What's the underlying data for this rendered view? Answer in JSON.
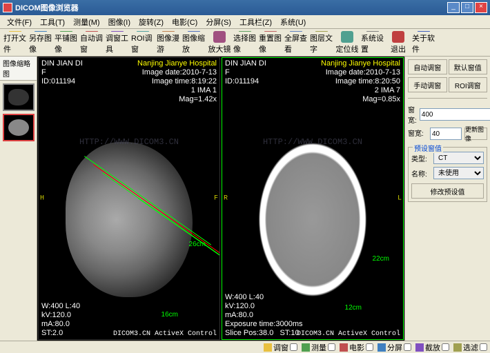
{
  "window": {
    "title": "DICOM图像浏览器"
  },
  "menu": [
    "文件(F)",
    "工具(T)",
    "测量(M)",
    "图像(I)",
    "旋转(Z)",
    "电影(C)",
    "分屏(S)",
    "工具栏(Z)",
    "系统(U)"
  ],
  "toolbar": [
    {
      "label": "打开文件",
      "color": "#e8c040"
    },
    {
      "label": "另存图像",
      "color": "#4080c0"
    },
    {
      "label": "平铺图像",
      "color": "#50a050"
    },
    {
      "label": "自动调窗",
      "color": "#c05050"
    },
    {
      "label": "调窗工具",
      "color": "#8050c0"
    },
    {
      "label": "ROI调窗",
      "color": "#50a0a0"
    },
    {
      "label": "图像漫游",
      "color": "#c08050"
    },
    {
      "label": "图像缩放",
      "color": "#5070c0"
    },
    {
      "label": "放大镜",
      "color": "#a05080"
    },
    {
      "label": "选择图像",
      "color": "#60a060"
    },
    {
      "label": "重置图像",
      "color": "#c06060"
    },
    {
      "label": "全屏查看",
      "color": "#6080c0"
    },
    {
      "label": "图层文字",
      "color": "#a0a050"
    },
    {
      "label": "定位线",
      "color": "#50a090"
    },
    {
      "label": "系统设置",
      "color": "#808080"
    },
    {
      "label": "退出",
      "color": "#c04040"
    },
    {
      "label": "关于软件",
      "color": "#4060c0"
    }
  ],
  "thumbs": {
    "tab": "图像缩略图"
  },
  "view1": {
    "patient": "DIN JIAN DI",
    "sex": "F",
    "id": "ID:011194",
    "hospital": "Nanjing Jianye Hospital",
    "date": "Image date:2010-7-13",
    "time": "Image time:8:19:22",
    "ima": "1 IMA 1",
    "mag": "Mag=1.42x",
    "side_l": "H",
    "side_r": "F",
    "wl": "W:400 L:40",
    "kv": "kV:120.0",
    "ma": "mA:80.0",
    "st": "ST:2.0",
    "ruler_r": "26cm",
    "ruler_b": "16cm",
    "watermark": "HTTP://WWW.DICOM3.CN",
    "control": "DICOM3.CN ActiveX Control"
  },
  "view2": {
    "patient": "DIN JIAN DI",
    "sex": "F",
    "id": "ID:011194",
    "hospital": "Nanjing Jianye Hospital",
    "date": "Image date:2010-7-13",
    "time": "Image time:8:20:50",
    "ima": "2 IMA 7",
    "mag": "Mag=0.85x",
    "side_l": "R",
    "side_r": "L",
    "wl": "W:400 L:40",
    "kv": "kV:120.0",
    "ma": "mA:80.0",
    "exp": "Exposure time:3000ms",
    "slice": "Slice Pos:38.0   ST:10",
    "ruler_r": "22cm",
    "ruler_b": "12cm",
    "watermark": "HTTP://WWW.DICOM3.CN",
    "control": "DICOM3.CN ActiveX Control"
  },
  "panel": {
    "auto": "自动调窗",
    "default": "默认窗值",
    "manual": "手动调窗",
    "roi": "ROI调窗",
    "ww_label": "窗宽:",
    "ww": "400",
    "wl_label": "窗宽:",
    "wl": "40",
    "update": "更新图像",
    "preset_title": "预设窗值",
    "type_label": "类型:",
    "type": "CT",
    "name_label": "名称:",
    "name": "未使用",
    "modify": "修改预设值"
  },
  "status": [
    {
      "label": "调窗"
    },
    {
      "label": "测量"
    },
    {
      "label": "电影"
    },
    {
      "label": "分屏"
    },
    {
      "label": "截放"
    },
    {
      "label": "选滤"
    }
  ]
}
